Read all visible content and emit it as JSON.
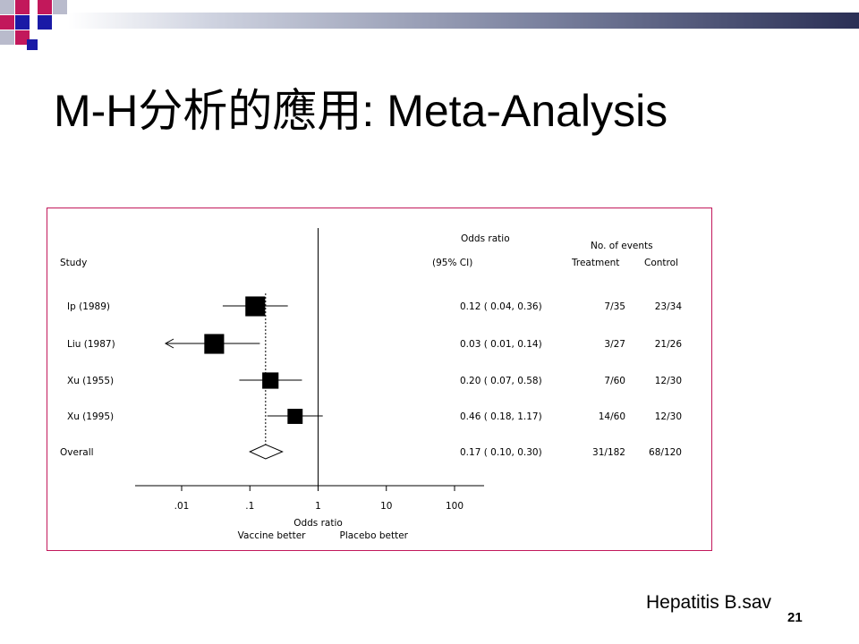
{
  "slide": {
    "title": "M-H分析的應用: Meta-Analysis",
    "file_label": "Hepatitis B.sav",
    "page_number": "21",
    "colors": {
      "frame": "#c2185b",
      "deco_red": "#c2185b",
      "deco_blue": "#1a1aa6",
      "deco_grey": "#b9bbcc"
    }
  },
  "chart_data": {
    "type": "forest",
    "scale": "log",
    "xlim": [
      0.01,
      100
    ],
    "ticks": [
      {
        "value": 0.01,
        "label": ".01"
      },
      {
        "value": 0.1,
        "label": ".1"
      },
      {
        "value": 1,
        "label": "1"
      },
      {
        "value": 10,
        "label": "10"
      },
      {
        "value": 100,
        "label": "100"
      }
    ],
    "xlabel": "Odds ratio",
    "left_label": "Vaccine better",
    "right_label": "Placebo better",
    "headers": {
      "study": "Study",
      "or_line1": "Odds ratio",
      "or_line2": "(95% CI)",
      "events": "No. of events",
      "treatment": "Treatment",
      "control": "Control"
    },
    "studies": [
      {
        "label": "Ip (1989)",
        "or": 0.12,
        "lo": 0.04,
        "hi": 0.36,
        "ci_text": "0.12 ( 0.04, 0.36)",
        "treatment": "7/35",
        "control": "23/34",
        "weight": 0.85,
        "arrow_left": false
      },
      {
        "label": "Liu (1987)",
        "or": 0.03,
        "lo": 0.01,
        "hi": 0.14,
        "ci_text": "0.03 ( 0.01, 0.14)",
        "treatment": "3/27",
        "control": "21/26",
        "weight": 0.85,
        "arrow_left": true
      },
      {
        "label": "Xu (1955)",
        "or": 0.2,
        "lo": 0.07,
        "hi": 0.58,
        "ci_text": "0.20 ( 0.07, 0.58)",
        "treatment": "7/60",
        "control": "12/30",
        "weight": 0.7,
        "arrow_left": false
      },
      {
        "label": "Xu (1995)",
        "or": 0.46,
        "lo": 0.18,
        "hi": 1.17,
        "ci_text": "0.46 ( 0.18, 1.17)",
        "treatment": "14/60",
        "control": "12/30",
        "weight": 0.65,
        "arrow_left": false
      }
    ],
    "overall": {
      "label": "Overall",
      "or": 0.17,
      "lo": 0.1,
      "hi": 0.3,
      "ci_text": "0.17 ( 0.10, 0.30)",
      "treatment": "31/182",
      "control": "68/120"
    }
  }
}
